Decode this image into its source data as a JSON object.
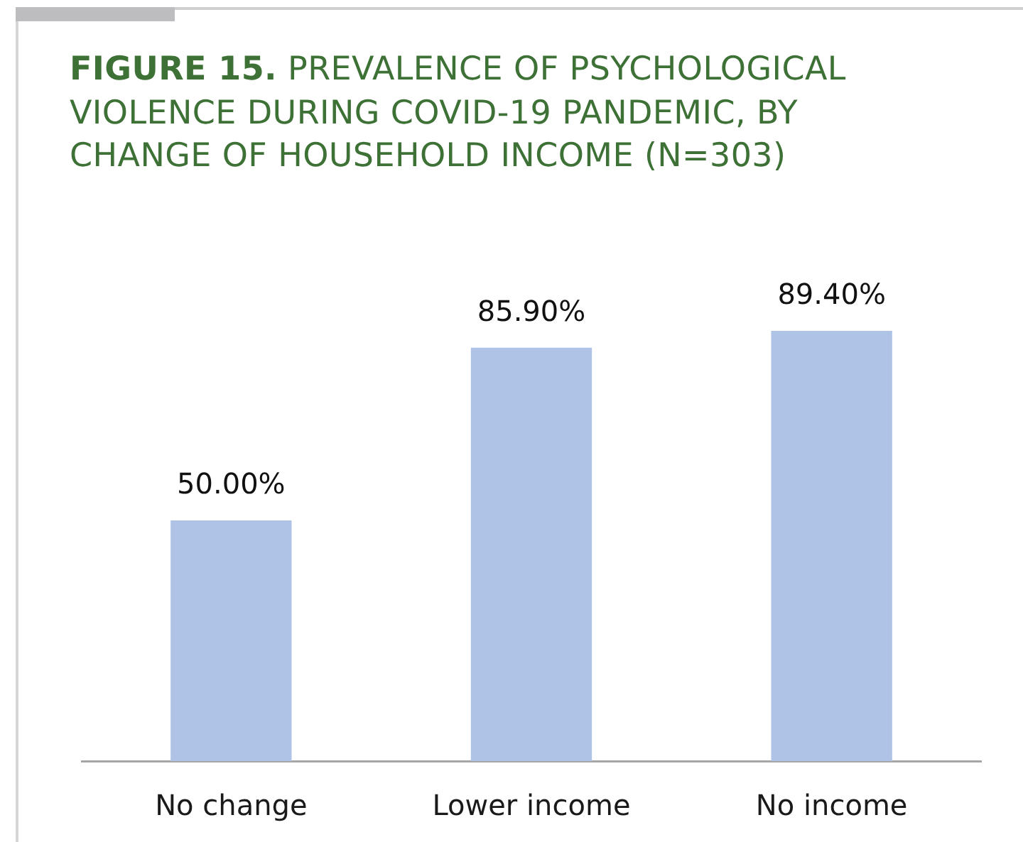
{
  "chart_data": {
    "type": "bar",
    "title": "FIGURE 15. PREVALENCE OF PSYCHOLOGICAL VIOLENCE DURING COVID-19 PANDEMIC, BY CHANGE OF HOUSEHOLD INCOME (N=303)",
    "categories": [
      "No change",
      "Lower income",
      "No income"
    ],
    "values": [
      50,
      85.9,
      89.4
    ],
    "color": "#aec3e5",
    "value_labels": [
      "50.00%",
      "85.90%",
      "89.40%"
    ],
    "tick_labels": "x"
  }
}
